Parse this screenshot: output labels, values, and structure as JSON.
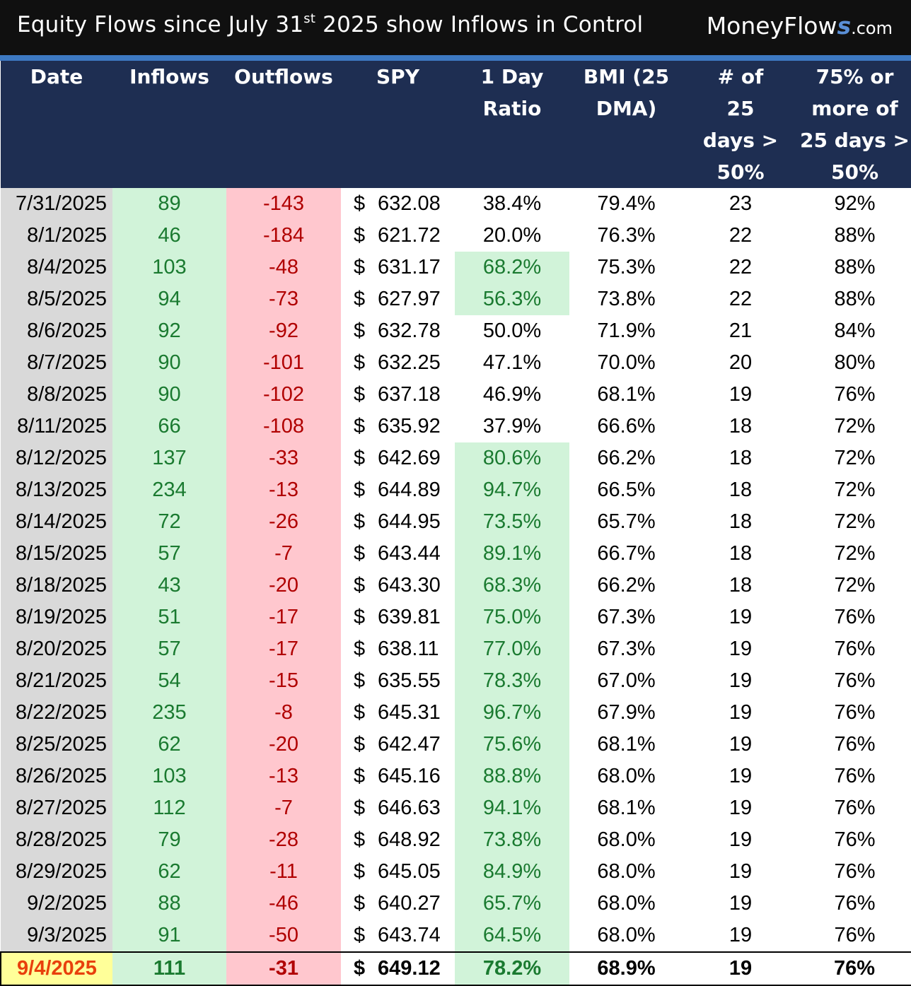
{
  "title_main": "Equity Flows since July 31",
  "title_sup": "st",
  "title_rest": " 2025 show Inflows in Control",
  "brand_prefix": "MoneyFlow",
  "brand_s": "s",
  "brand_suffix": ".com",
  "colors": {
    "header_bg": "#1e2e52",
    "accent_line": "#3d79c2",
    "inflow_bg": "#d1f3d9",
    "inflow_text": "#1a7a30",
    "outflow_bg": "#ffc7ce",
    "outflow_text": "#b00000",
    "highlight_date_bg": "#ffff99",
    "highlight_date_text": "#e8400c"
  },
  "chart_data": {
    "type": "table",
    "columns": [
      "Date",
      "Inflows",
      "Outflows",
      "SPY",
      "1 Day Ratio",
      "BMI (25 DMA)",
      "# of 25 days > 50%",
      "75% or more of 25 days > 50%"
    ],
    "rows": [
      [
        "7/31/2025",
        "89",
        "-143",
        "632.08",
        "38.4%",
        "79.4%",
        "23",
        "92%"
      ],
      [
        "8/1/2025",
        "46",
        "-184",
        "621.72",
        "20.0%",
        "76.3%",
        "22",
        "88%"
      ],
      [
        "8/4/2025",
        "103",
        "-48",
        "631.17",
        "68.2%",
        "75.3%",
        "22",
        "88%"
      ],
      [
        "8/5/2025",
        "94",
        "-73",
        "627.97",
        "56.3%",
        "73.8%",
        "22",
        "88%"
      ],
      [
        "8/6/2025",
        "92",
        "-92",
        "632.78",
        "50.0%",
        "71.9%",
        "21",
        "84%"
      ],
      [
        "8/7/2025",
        "90",
        "-101",
        "632.25",
        "47.1%",
        "70.0%",
        "20",
        "80%"
      ],
      [
        "8/8/2025",
        "90",
        "-102",
        "637.18",
        "46.9%",
        "68.1%",
        "19",
        "76%"
      ],
      [
        "8/11/2025",
        "66",
        "-108",
        "635.92",
        "37.9%",
        "66.6%",
        "18",
        "72%"
      ],
      [
        "8/12/2025",
        "137",
        "-33",
        "642.69",
        "80.6%",
        "66.2%",
        "18",
        "72%"
      ],
      [
        "8/13/2025",
        "234",
        "-13",
        "644.89",
        "94.7%",
        "66.5%",
        "18",
        "72%"
      ],
      [
        "8/14/2025",
        "72",
        "-26",
        "644.95",
        "73.5%",
        "65.7%",
        "18",
        "72%"
      ],
      [
        "8/15/2025",
        "57",
        "-7",
        "643.44",
        "89.1%",
        "66.7%",
        "18",
        "72%"
      ],
      [
        "8/18/2025",
        "43",
        "-20",
        "643.30",
        "68.3%",
        "66.2%",
        "18",
        "72%"
      ],
      [
        "8/19/2025",
        "51",
        "-17",
        "639.81",
        "75.0%",
        "67.3%",
        "19",
        "76%"
      ],
      [
        "8/20/2025",
        "57",
        "-17",
        "638.11",
        "77.0%",
        "67.3%",
        "19",
        "76%"
      ],
      [
        "8/21/2025",
        "54",
        "-15",
        "635.55",
        "78.3%",
        "67.0%",
        "19",
        "76%"
      ],
      [
        "8/22/2025",
        "235",
        "-8",
        "645.31",
        "96.7%",
        "67.9%",
        "19",
        "76%"
      ],
      [
        "8/25/2025",
        "62",
        "-20",
        "642.47",
        "75.6%",
        "68.1%",
        "19",
        "76%"
      ],
      [
        "8/26/2025",
        "103",
        "-13",
        "645.16",
        "88.8%",
        "68.0%",
        "19",
        "76%"
      ],
      [
        "8/27/2025",
        "112",
        "-7",
        "646.63",
        "94.1%",
        "68.1%",
        "19",
        "76%"
      ],
      [
        "8/28/2025",
        "79",
        "-28",
        "648.92",
        "73.8%",
        "68.0%",
        "19",
        "76%"
      ],
      [
        "8/29/2025",
        "62",
        "-11",
        "645.05",
        "84.9%",
        "68.0%",
        "19",
        "76%"
      ],
      [
        "9/2/2025",
        "88",
        "-46",
        "640.27",
        "65.7%",
        "68.0%",
        "19",
        "76%"
      ],
      [
        "9/3/2025",
        "91",
        "-50",
        "643.74",
        "64.5%",
        "68.0%",
        "19",
        "76%"
      ],
      [
        "9/4/2025",
        "111",
        "-31",
        "649.12",
        "78.2%",
        "68.9%",
        "19",
        "76%"
      ]
    ],
    "ratio_highlighted": [
      false,
      false,
      true,
      true,
      false,
      false,
      false,
      false,
      true,
      true,
      true,
      true,
      true,
      true,
      true,
      true,
      true,
      true,
      true,
      true,
      true,
      true,
      true,
      true,
      true
    ],
    "spy_currency_symbol": "$",
    "emphasized_last_row": true
  }
}
